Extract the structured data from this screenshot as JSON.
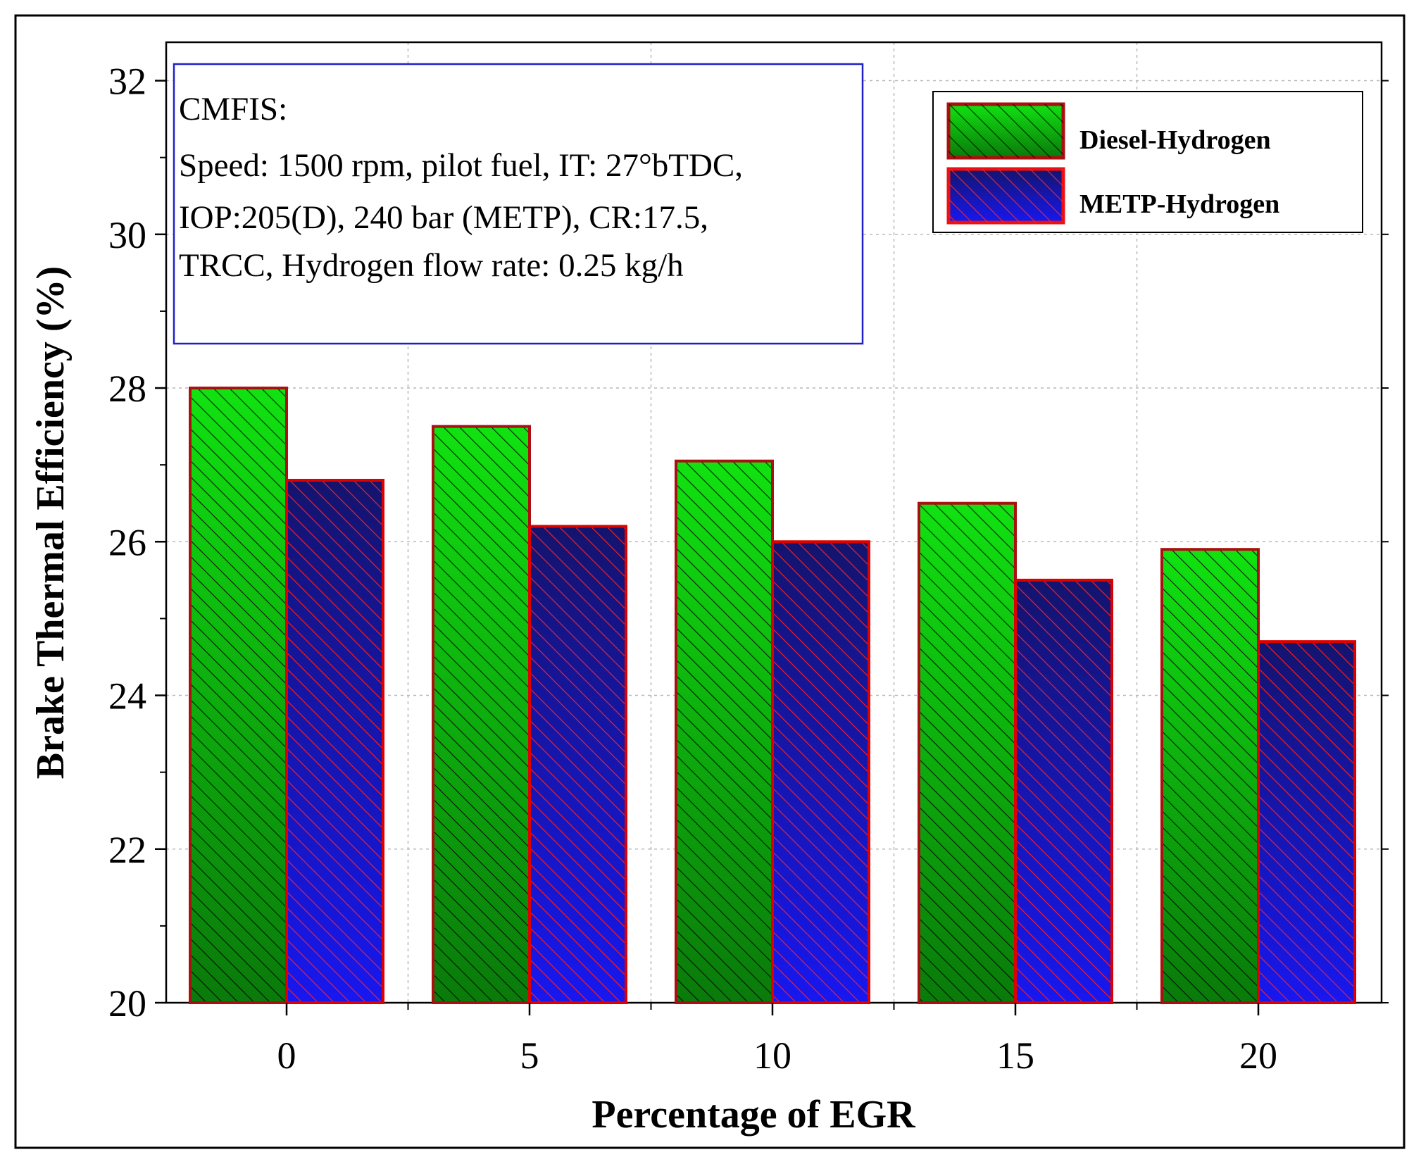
{
  "colors": {
    "diesel_fill": "#11e211",
    "diesel_fill_dark": "#0a7a0a",
    "metp_fill": "#1717f0",
    "metp_fill_dark": "#14146e",
    "bar_edge": "#dd0000",
    "annotation_border": "#2020c8",
    "grid": "#b8b8b8"
  },
  "annotation": {
    "lines": [
      "CMFIS:",
      "Speed: 1500 rpm, pilot fuel, IT: 27°bTDC,",
      "IOP:205(D), 240 bar (METP), CR:17.5,",
      "TRCC, Hydrogen flow rate: 0.25 kg/h"
    ]
  },
  "chart_data": {
    "type": "bar",
    "title": "",
    "xlabel": "Percentage of EGR",
    "ylabel": "Brake Thermal Efficiency (%)",
    "categories": [
      "0",
      "5",
      "10",
      "15",
      "20"
    ],
    "series": [
      {
        "name": "Diesel-Hydrogen",
        "values": [
          28.0,
          27.5,
          27.05,
          26.5,
          25.9
        ]
      },
      {
        "name": "METP-Hydrogen",
        "values": [
          26.8,
          26.2,
          26.0,
          25.5,
          24.7
        ]
      }
    ],
    "ylim": [
      20,
      32.5
    ],
    "yticks": [
      20,
      22,
      24,
      26,
      28,
      30,
      32
    ],
    "grid": true,
    "legend_position": "top-right"
  }
}
